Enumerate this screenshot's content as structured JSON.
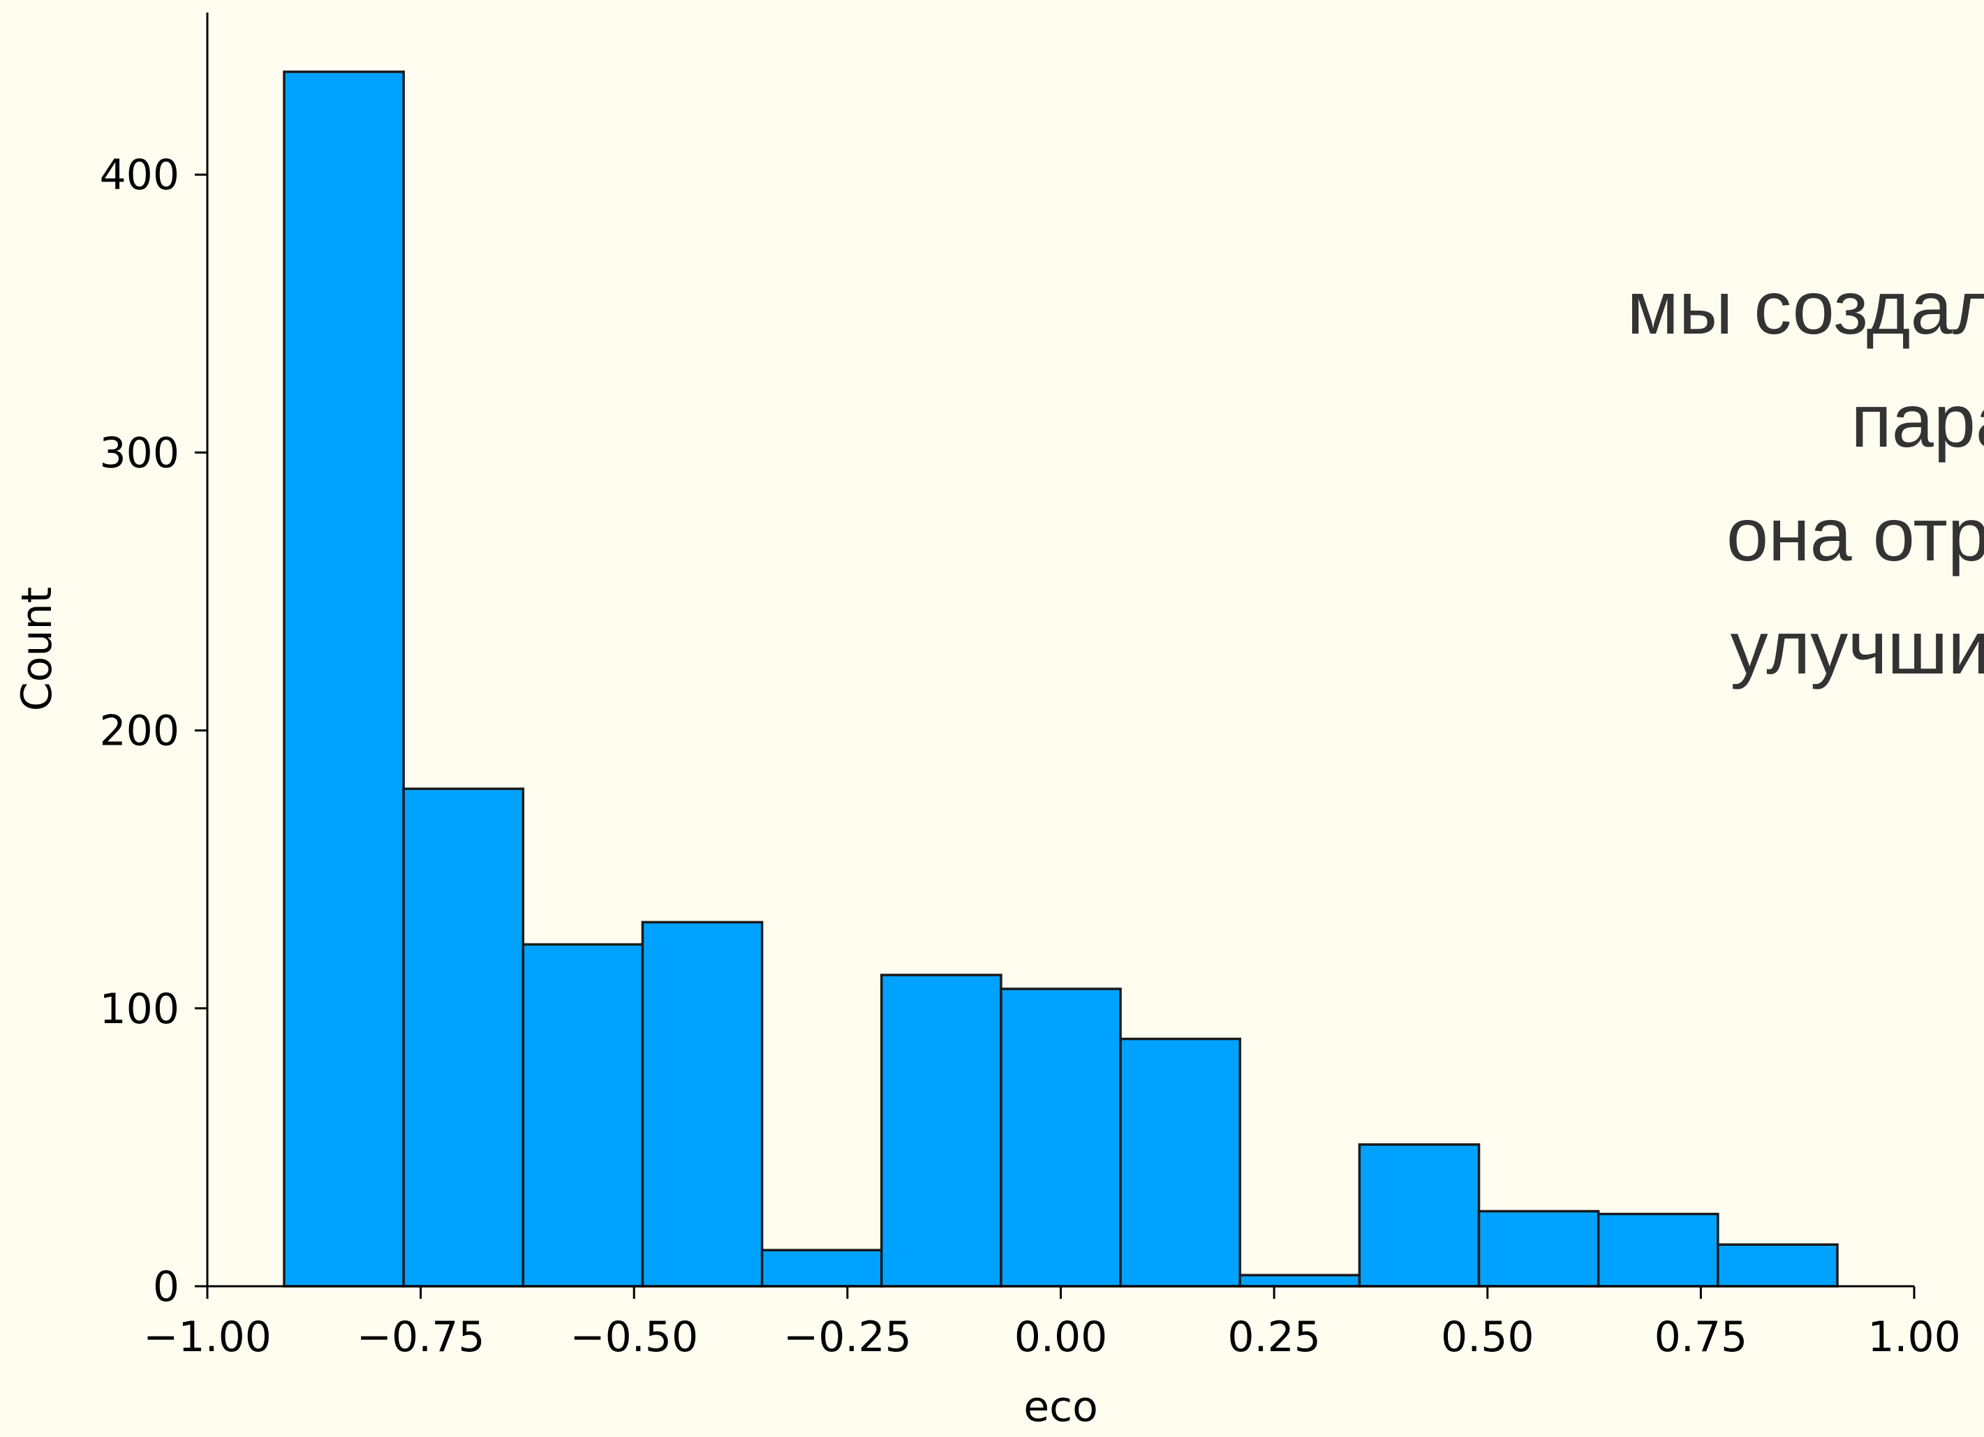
{
  "colors": {
    "background": "#fefdf0",
    "bar_fill": "#00a2ff",
    "bar_edge": "#1a1a1a",
    "axis": "#000000",
    "overlay_text": "#333333"
  },
  "chart_data": {
    "type": "bar",
    "subtype": "histogram",
    "xlabel": "eco",
    "ylabel": "Count",
    "xlim": [
      -1.0,
      1.0
    ],
    "ylim": [
      0,
      460
    ],
    "xticks": [
      -1.0,
      -0.75,
      -0.5,
      -0.25,
      0.0,
      0.25,
      0.5,
      0.75,
      1.0
    ],
    "xtick_labels": [
      "−1.00",
      "−0.75",
      "−0.50",
      "−0.25",
      "0.00",
      "0.25",
      "0.50",
      "0.75",
      "1.00"
    ],
    "yticks": [
      0,
      100,
      200,
      300,
      400
    ],
    "ytick_labels": [
      "0",
      "100",
      "200",
      "300",
      "400"
    ],
    "grid": false,
    "bins": [
      {
        "x0": -0.91,
        "x1": -0.77,
        "count": 437
      },
      {
        "x0": -0.77,
        "x1": -0.63,
        "count": 179
      },
      {
        "x0": -0.63,
        "x1": -0.49,
        "count": 123
      },
      {
        "x0": -0.49,
        "x1": -0.35,
        "count": 131
      },
      {
        "x0": -0.35,
        "x1": -0.21,
        "count": 13
      },
      {
        "x0": -0.21,
        "x1": -0.07,
        "count": 112
      },
      {
        "x0": -0.07,
        "x1": 0.07,
        "count": 107
      },
      {
        "x0": 0.07,
        "x1": 0.21,
        "count": 89
      },
      {
        "x0": 0.21,
        "x1": 0.35,
        "count": 4
      },
      {
        "x0": 0.35,
        "x1": 0.49,
        "count": 51
      },
      {
        "x0": 0.49,
        "x1": 0.63,
        "count": 27
      },
      {
        "x0": 0.63,
        "x1": 0.77,
        "count": 26
      },
      {
        "x0": 0.77,
        "x1": 0.91,
        "count": 15
      }
    ]
  },
  "overlay_text": {
    "lines": [
      "мы создали",
      "пара",
      "она отра",
      "улучшит"
    ]
  }
}
